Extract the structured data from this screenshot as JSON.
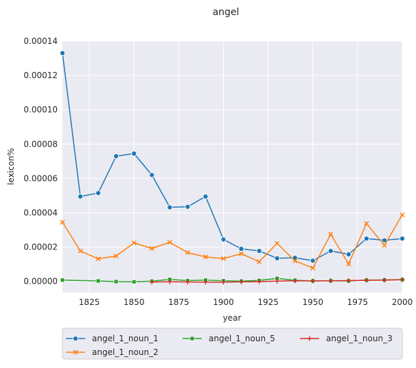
{
  "chart_data": {
    "type": "line",
    "title": "angel",
    "xlabel": "year",
    "ylabel": "lexicon%",
    "xlim": [
      1810,
      2000
    ],
    "ylim": [
      -6.5e-06,
      0.00014
    ],
    "xticks": [
      1825,
      1850,
      1875,
      1900,
      1925,
      1950,
      1975,
      2000
    ],
    "yticks": [
      0,
      2e-05,
      4e-05,
      6e-05,
      8e-05,
      0.0001,
      0.00012,
      0.00014
    ],
    "ytick_labels": [
      "0.00000",
      "0.00002",
      "0.00004",
      "0.00006",
      "0.00008",
      "0.00010",
      "0.00012",
      "0.00014"
    ],
    "grid": true,
    "legend_position": "below",
    "series": [
      {
        "name": "angel_1_noun_1",
        "color": "#1f77b4",
        "marker": "circle",
        "x": [
          1810,
          1820,
          1830,
          1840,
          1850,
          1860,
          1870,
          1880,
          1890,
          1900,
          1910,
          1920,
          1930,
          1940,
          1950,
          1960,
          1970,
          1980,
          1990,
          2000
        ],
        "values": [
          0.000133,
          4.95e-05,
          5.15e-05,
          7.3e-05,
          7.45e-05,
          6.2e-05,
          4.32e-05,
          4.35e-05,
          4.95e-05,
          2.45e-05,
          1.9e-05,
          1.78e-05,
          1.35e-05,
          1.38e-05,
          1.21e-05,
          1.78e-05,
          1.58e-05,
          2.5e-05,
          2.4e-05,
          2.5e-05
        ]
      },
      {
        "name": "angel_1_noun_2",
        "color": "#ff7f0e",
        "marker": "x",
        "x": [
          1810,
          1820,
          1830,
          1840,
          1850,
          1860,
          1870,
          1880,
          1890,
          1900,
          1910,
          1920,
          1930,
          1940,
          1950,
          1960,
          1970,
          1980,
          1990,
          2000
        ],
        "values": [
          3.45e-05,
          1.78e-05,
          1.32e-05,
          1.48e-05,
          2.25e-05,
          1.92e-05,
          2.28e-05,
          1.68e-05,
          1.43e-05,
          1.33e-05,
          1.62e-05,
          1.15e-05,
          2.22e-05,
          1.2e-05,
          7.8e-06,
          2.75e-05,
          1.02e-05,
          3.38e-05,
          2.1e-05,
          3.88e-05
        ]
      },
      {
        "name": "angel_1_noun_5",
        "color": "#2ca02c",
        "marker": "square",
        "x": [
          1810,
          1830,
          1840,
          1850,
          1860,
          1870,
          1880,
          1890,
          1900,
          1910,
          1920,
          1930,
          1940,
          1950,
          1960,
          1970,
          1980,
          1990,
          2000
        ],
        "values": [
          8e-07,
          3e-07,
          -1e-07,
          -2e-07,
          2e-07,
          1.2e-06,
          5e-07,
          8e-07,
          4e-07,
          2e-07,
          6e-07,
          1.8e-06,
          7e-07,
          3e-07,
          4e-07,
          3e-07,
          8e-07,
          9e-07,
          1.1e-06
        ]
      },
      {
        "name": "angel_1_noun_3",
        "color": "#d62728",
        "marker": "plus",
        "x": [
          1860,
          1870,
          1880,
          1890,
          1900,
          1910,
          1920,
          1930,
          1940,
          1950,
          1960,
          1970,
          1980,
          1990,
          2000
        ],
        "values": [
          -3e-07,
          -2e-07,
          -3e-07,
          -4e-07,
          -4e-07,
          -2e-07,
          -1e-07,
          2e-07,
          4e-07,
          3e-07,
          4e-07,
          5e-07,
          7e-07,
          8e-07,
          1e-06
        ]
      }
    ]
  }
}
